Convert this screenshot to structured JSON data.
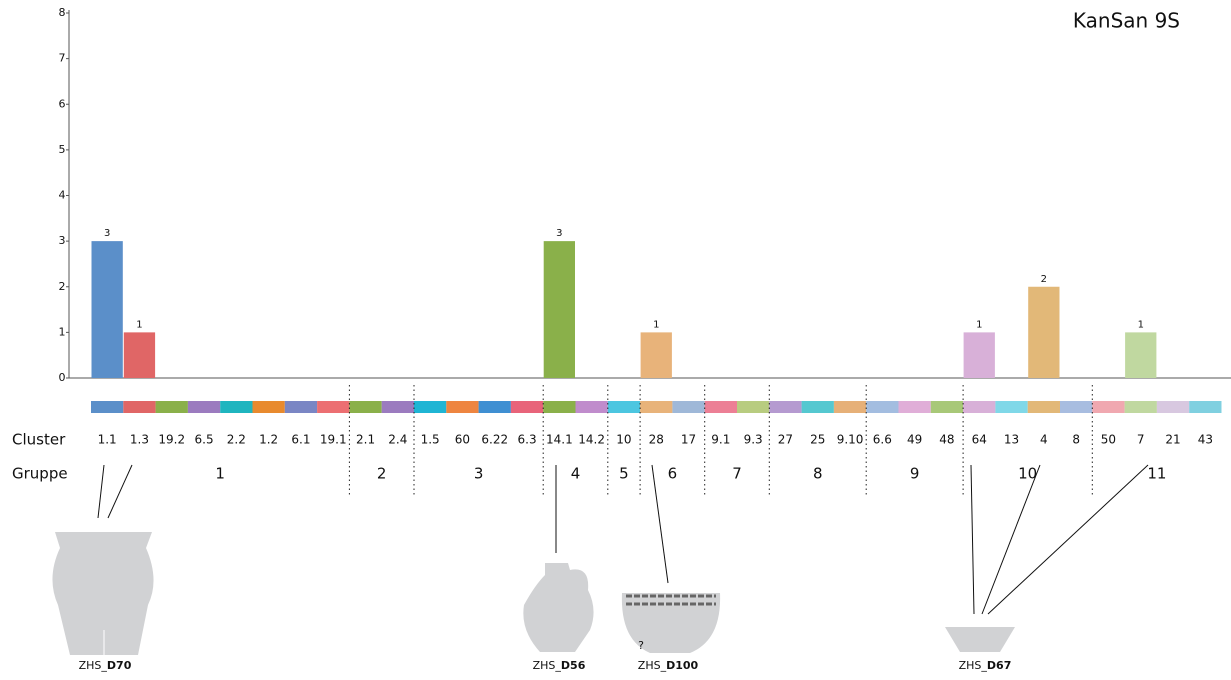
{
  "chart_data": {
    "type": "bar",
    "title": "KanSan 9S",
    "categories": [
      "1.1",
      "1.3",
      "19.2",
      "6.5",
      "2.2",
      "1.2",
      "6.1",
      "19.1",
      "2.1",
      "2.4",
      "1.5",
      "60",
      "6.22",
      "6.3",
      "14.1",
      "14.2",
      "10",
      "28",
      "17",
      "9.1",
      "9.3",
      "27",
      "25",
      "9.10",
      "6.6",
      "49",
      "48",
      "64",
      "13",
      "4",
      "8",
      "50",
      "7",
      "21",
      "43"
    ],
    "values": [
      3,
      1,
      0,
      0,
      0,
      0,
      0,
      0,
      0,
      0,
      0,
      0,
      0,
      0,
      3,
      0,
      0,
      1,
      0,
      0,
      0,
      0,
      0,
      0,
      0,
      0,
      0,
      1,
      0,
      2,
      0,
      0,
      1,
      0,
      0
    ],
    "colors": [
      "#5b8fc9",
      "#e06666",
      "#8ab04a",
      "#9b7bbf",
      "#1fb5bf",
      "#e88a2e",
      "#7a86c4",
      "#ec6f72",
      "#8ab04a",
      "#9b7bbf",
      "#1fb5d4",
      "#ee8540",
      "#3f8fd2",
      "#e8647a",
      "#8ab04a",
      "#c08ccc",
      "#4cc6e0",
      "#e8b37a",
      "#9fb8d8",
      "#ec7f95",
      "#b8cc80",
      "#b59ad0",
      "#55c8d0",
      "#e6b078",
      "#a3bde0",
      "#e0aed8",
      "#a8c878",
      "#d8b0d8",
      "#80d8e8",
      "#e2b878",
      "#a8bde0",
      "#f0a8b0",
      "#c0d8a0",
      "#d8c8e0",
      "#80d0e0"
    ],
    "row_labels": {
      "cluster": "Cluster",
      "group": "Gruppe"
    },
    "group_of": [
      "1",
      "1",
      "1",
      "1",
      "1",
      "1",
      "1",
      "1",
      "2",
      "2",
      "3",
      "3",
      "3",
      "3",
      "4",
      "4",
      "5",
      "6",
      "6",
      "7",
      "7",
      "8",
      "8",
      "8",
      "9",
      "9",
      "9",
      "10",
      "10",
      "10",
      "10",
      "11",
      "11",
      "11",
      "11"
    ],
    "ylim": [
      0,
      8
    ],
    "yticks": [
      0,
      1,
      2,
      3,
      4,
      5,
      6,
      7,
      8
    ]
  },
  "vessels": [
    {
      "prefix": "ZHS_",
      "code": "D70"
    },
    {
      "prefix": "ZHS_",
      "code": "D56"
    },
    {
      "prefix": "ZHS_",
      "code": "D100",
      "note": "?"
    },
    {
      "prefix": "ZHS_",
      "code": "D67"
    }
  ]
}
